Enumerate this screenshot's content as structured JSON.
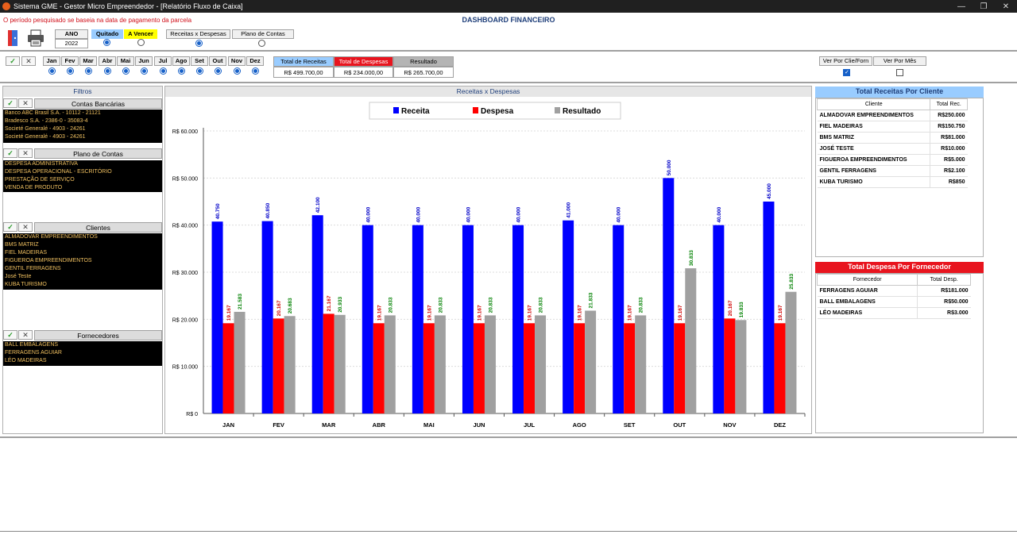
{
  "window": {
    "title": "Sistema GME - Gestor Micro Empreendedor - [Relatório Fluxo de Caixa]"
  },
  "header": {
    "notice": "O período pesquisado se baseia na data de pagamento da parcela",
    "dashboard_title": "DASHBOARD FINANCEIRO"
  },
  "filters_bar": {
    "ano_label": "ANO",
    "ano_value": "2022",
    "quitado_label": "Quitado",
    "a_vencer_label": "A Vencer",
    "receitas_despesas_label": "Receitas x Despesas",
    "plano_contas_label": "Plano de Contas",
    "months": [
      "Jan",
      "Fev",
      "Mar",
      "Abr",
      "Mai",
      "Jun",
      "Jul",
      "Ago",
      "Set",
      "Out",
      "Nov",
      "Dez"
    ],
    "ver_por_clie_label": "Ver Por Clie/Forn",
    "ver_por_mes_label": "Ver Por Mês"
  },
  "totals": {
    "receitas_label": "Total de Receitas",
    "receitas_value": "R$ 499.700,00",
    "despesas_label": "Total de Despesas",
    "despesas_value": "R$ 234.000,00",
    "resultado_label": "Resultado",
    "resultado_value": "R$ 265.700,00"
  },
  "left_panel": {
    "title": "Filtros",
    "contas": {
      "title": "Contas Bancárias",
      "items": [
        "Banco ABC Brasil S.A. - 10112 - 21121",
        "Bradesco S.A. - 2386-0 - 35083-4",
        "Societé Generalé - 4903 - 24261",
        "Societé Generalé - 4903 - 24261"
      ]
    },
    "plano": {
      "title": "Plano de Contas",
      "items": [
        "DESPESA ADMINISTRATIVA",
        "DESPESA OPERACIONAL - ESCRITÓRIO",
        "PRESTAÇÃO DE SERVIÇO",
        "VENDA DE PRODUTO"
      ]
    },
    "clientes": {
      "title": "Clientes",
      "items": [
        "ALMADOVAR EMPREENDIMENTOS",
        "BMS MATRIZ",
        "FIEL MADEIRAS",
        "FIGUEROA EMPREENDIMENTOS",
        "GENTIL FERRAGENS",
        "José Teste",
        "KUBA TURISMO"
      ]
    },
    "fornecedores": {
      "title": "Fornecedores",
      "items": [
        "BALL EMBALAGENS",
        "FERRAGENS AGUIAR",
        "LÉO MADEIRAS"
      ]
    }
  },
  "chart_panel": {
    "title": "Receitas x Despesas"
  },
  "chart_data": {
    "type": "bar",
    "categories": [
      "JAN",
      "FEV",
      "MAR",
      "ABR",
      "MAI",
      "JUN",
      "JUL",
      "AGO",
      "SET",
      "OUT",
      "NOV",
      "DEZ"
    ],
    "series": [
      {
        "name": "Receita",
        "color": "#0000ff",
        "label_color": "#0000c8",
        "values": [
          40750,
          40850,
          42100,
          40000,
          40000,
          40000,
          40000,
          41000,
          40000,
          50000,
          40000,
          45000
        ],
        "labels": [
          "40.750",
          "40.850",
          "42.100",
          "40.000",
          "40.000",
          "40.000",
          "40.000",
          "41.000",
          "40.000",
          "50.000",
          "40.000",
          "45.000"
        ]
      },
      {
        "name": "Despesa",
        "color": "#ff0000",
        "label_color": "#d00000",
        "values": [
          19167,
          20167,
          21167,
          19167,
          19167,
          19167,
          19167,
          19167,
          19167,
          19167,
          20167,
          19167
        ],
        "labels": [
          "19.167",
          "20.167",
          "21.167",
          "19.167",
          "19.167",
          "19.167",
          "19.167",
          "19.167",
          "19.167",
          "19.167",
          "20.167",
          "19.167"
        ]
      },
      {
        "name": "Resultado",
        "color": "#a0a0a0",
        "label_color": "#008000",
        "values": [
          21583,
          20683,
          20933,
          20833,
          20833,
          20833,
          20833,
          21833,
          20833,
          30833,
          19833,
          25833
        ],
        "labels": [
          "21.583",
          "20.683",
          "20.933",
          "20.833",
          "20.833",
          "20.833",
          "20.833",
          "21.833",
          "20.833",
          "30.833",
          "19.833",
          "25.833"
        ]
      }
    ],
    "y_ticks": [
      "R$ 0",
      "R$ 10.000",
      "R$ 20.000",
      "R$ 30.000",
      "R$ 40.000",
      "R$ 50.000",
      "R$ 60.000"
    ],
    "ylim": [
      0,
      60000
    ],
    "grid": true,
    "legend": "top"
  },
  "right_panel": {
    "receitas_title": "Total Receitas Por Cliente",
    "receitas_headers": [
      "Cliente",
      "Total Rec."
    ],
    "receitas_rows": [
      [
        "ALMADOVAR EMPREENDIMENTOS",
        "R$250.000"
      ],
      [
        "FIEL MADEIRAS",
        "R$150.750"
      ],
      [
        "BMS MATRIZ",
        "R$81.000"
      ],
      [
        "JOSÉ TESTE",
        "R$10.000"
      ],
      [
        "FIGUEROA EMPREENDIMENTOS",
        "R$5.000"
      ],
      [
        "GENTIL FERRAGENS",
        "R$2.100"
      ],
      [
        "KUBA TURISMO",
        "R$850"
      ]
    ],
    "despesa_title": "Total Despesa Por Fornecedor",
    "despesa_headers": [
      "Fornecedor",
      "Total Desp."
    ],
    "despesa_rows": [
      [
        "FERRAGENS AGUIAR",
        "R$181.000"
      ],
      [
        "BALL EMBALAGENS",
        "R$50.000"
      ],
      [
        "LÉO MADEIRAS",
        "R$3.000"
      ]
    ],
    "colors": {
      "receitas_header": "#99ccff",
      "despesa_header": "#e8141e"
    }
  }
}
